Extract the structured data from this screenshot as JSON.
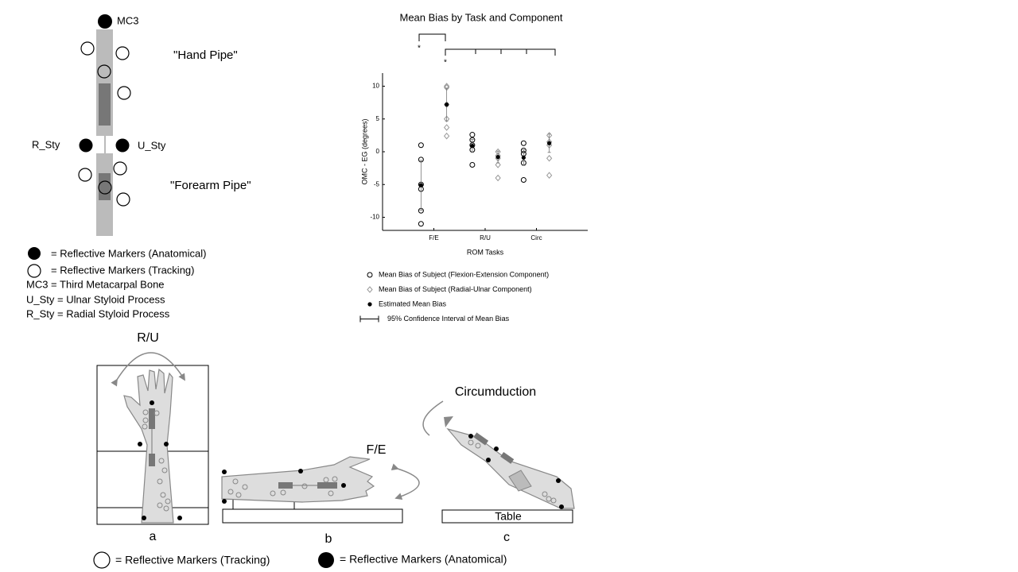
{
  "diagram": {
    "top": {
      "mc3": "MC3",
      "hand_pipe": "\"Hand Pipe\"",
      "r_sty": "R_Sty",
      "u_sty": "U_Sty",
      "forearm_pipe": "\"Forearm Pipe\""
    },
    "legend": {
      "anatomical": "= Reflective Markers (Anatomical)",
      "tracking": "= Reflective Markers (Tracking)",
      "mc3": "MC3 = Third Metacarpal Bone",
      "u_sty": "U_Sty = Ulnar Styloid Process",
      "r_sty": "R_Sty = Radial Styloid Process"
    },
    "bottom": {
      "ru": "R/U",
      "fe": "F/E",
      "circumduction": "Circumduction",
      "table": "Table",
      "panel_a": "a",
      "panel_b": "b",
      "panel_c": "c",
      "tracking": "= Reflective Markers (Tracking)",
      "anatomical": "= Reflective Markers (Anatomical)"
    }
  },
  "chart_data": {
    "type": "scatter",
    "title": "Mean Bias by Task and Component",
    "x_label": "ROM Tasks",
    "y_label": "OMC - EG (degrees)",
    "xlim": [
      0,
      4
    ],
    "xticks": [
      {
        "value": 1,
        "label": "F/E"
      },
      {
        "value": 2,
        "label": "R/U"
      },
      {
        "value": 3,
        "label": "Circ"
      }
    ],
    "ylim": [
      -12,
      12
    ],
    "yticks": [
      -10,
      -5,
      0,
      5,
      10
    ],
    "annotations": [
      "*",
      "*"
    ],
    "series": [
      {
        "name": "Mean Bias of Subject (Flexion-Extension Component)",
        "color": "#000000",
        "marker": "circle",
        "x": [
          0.75,
          0.75,
          0.75,
          0.75,
          0.75,
          0.75,
          1.75,
          1.75,
          1.75,
          1.75,
          1.75,
          2.75,
          2.75,
          2.75,
          2.75,
          2.75
        ],
        "values": [
          1,
          -1.2,
          -5,
          -5.7,
          -9,
          -11,
          2.6,
          1.8,
          1,
          0.3,
          -2,
          1.3,
          0.2,
          -0.3,
          -1.7,
          -4.3
        ]
      },
      {
        "name": "Mean Bias of Subject (Radial-Ulnar Component)",
        "color": "#999999",
        "marker": "diamond",
        "x": [
          1.25,
          1.25,
          1.25,
          1.25,
          1.25,
          1.25,
          2.25,
          2.25,
          2.25,
          2.25,
          2.25,
          3.25,
          3.25,
          3.25,
          3.25,
          3.25
        ],
        "values": [
          10,
          9.8,
          7.2,
          5,
          3.7,
          2.4,
          0,
          -0.6,
          -1,
          -2,
          -4,
          2.5,
          1.5,
          1,
          -1,
          -3.6
        ]
      },
      {
        "name": "Estimated Mean Bias",
        "color": "#000000",
        "marker": "dot",
        "x": [
          0.75,
          1.25,
          1.75,
          2.25,
          2.75,
          3.25
        ],
        "values": [
          -5.1,
          7.2,
          0.9,
          -0.8,
          -0.9,
          1.3
        ],
        "errors": [
          3.8,
          2.5,
          1,
          0.9,
          1.2,
          1.4
        ]
      }
    ],
    "ci_legend": "95% Confidence Interval of Mean Bias"
  }
}
